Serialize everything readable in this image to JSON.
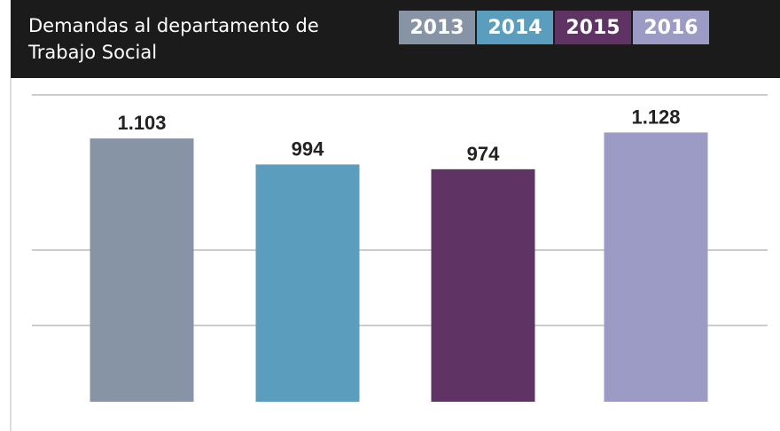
{
  "chart_data": {
    "type": "bar",
    "title": "Demandas al departamento de Trabajo Social",
    "categories": [
      "2013",
      "2014",
      "2015",
      "2016"
    ],
    "values": [
      1103,
      994,
      974,
      1128
    ],
    "value_labels": [
      "1.103",
      "994",
      "974",
      "1.128"
    ],
    "colors": [
      "#8794a6",
      "#5b9dbc",
      "#5f3363",
      "#9b9bc6"
    ],
    "ylim": [
      0,
      1200
    ]
  }
}
